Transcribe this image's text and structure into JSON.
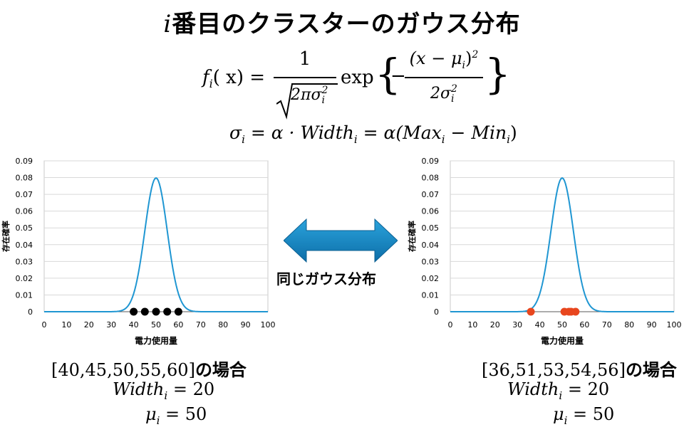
{
  "title": {
    "prefix": "i",
    "text": "番目のクラスターのガウス分布"
  },
  "formula1": {
    "lhs": "f",
    "lhs_sub": "i",
    "lhs_arg": "( x) =",
    "numerator": "1",
    "denominator": "2πσ",
    "denominator_sup": "2",
    "denominator_sub": "i",
    "exp": "exp",
    "brace_open": "{",
    "brace_close": "}",
    "minus": "−",
    "inner_numerator": "(x − μ",
    "inner_numerator_sub": "i",
    "inner_numerator_close": ")",
    "inner_numerator_sup": "2",
    "inner_denominator": "2σ",
    "inner_denominator_sup": "2",
    "inner_denominator_sub": "i"
  },
  "formula2": {
    "sigma": "σ",
    "sub1": "i",
    "eq1": " = α · Width",
    "sub2": "i",
    "eq2": " = α(Max",
    "sub3": "i",
    "minus": " − Min",
    "sub4": "i",
    "close": ")"
  },
  "center_label": "同じガウス分布",
  "charts": [
    {
      "id": "left",
      "points_color": "#000000",
      "points": [
        40,
        45,
        50,
        55,
        60
      ],
      "caption_data": "[40,45,50,55,60]",
      "caption_suffix": "の場合",
      "width_label": "Width",
      "width_sub": "i",
      "width_value": " = 20",
      "mu_label": "μ",
      "mu_sub": "i",
      "mu_value": " = 50"
    },
    {
      "id": "right",
      "points_color": "#e8461e",
      "points": [
        36,
        51,
        53,
        54,
        56
      ],
      "caption_data": "[36,51,53,54,56]",
      "caption_suffix": "の場合",
      "width_label": "Width",
      "width_sub": "i",
      "width_value": " = 20",
      "mu_label": "μ",
      "mu_sub": "i",
      "mu_value": " = 50"
    }
  ],
  "chart_data": [
    {
      "type": "line",
      "xlabel": "電力使用量",
      "ylabel": "存在確率",
      "xlim": [
        0,
        100
      ],
      "ylim": [
        0,
        0.09
      ],
      "xticks": [
        "0",
        "10",
        "20",
        "30",
        "40",
        "50",
        "60",
        "70",
        "80",
        "90",
        "100"
      ],
      "yticks": [
        "0",
        "0.01",
        "0.02",
        "0.03",
        "0.04",
        "0.05",
        "0.06",
        "0.07",
        "0.08",
        "0.09"
      ],
      "curve": {
        "type": "gaussian",
        "mean": 50,
        "sigma": 5
      },
      "scatter": {
        "x": [
          40,
          45,
          50,
          55,
          60
        ],
        "y": [
          0,
          0,
          0,
          0,
          0
        ]
      },
      "line_color": "#1f96d2"
    },
    {
      "type": "line",
      "xlabel": "電力使用量",
      "ylabel": "存在確率",
      "xlim": [
        0,
        100
      ],
      "ylim": [
        0,
        0.09
      ],
      "xticks": [
        "0",
        "10",
        "20",
        "30",
        "40",
        "50",
        "60",
        "70",
        "80",
        "90",
        "100"
      ],
      "yticks": [
        "0",
        "0.01",
        "0.02",
        "0.03",
        "0.04",
        "0.05",
        "0.06",
        "0.07",
        "0.08",
        "0.09"
      ],
      "curve": {
        "type": "gaussian",
        "mean": 50,
        "sigma": 5
      },
      "scatter": {
        "x": [
          36,
          51,
          53,
          54,
          56
        ],
        "y": [
          0,
          0,
          0,
          0,
          0
        ]
      },
      "line_color": "#1f96d2"
    }
  ],
  "colors": {
    "arrow_top": "#2aa3dc",
    "arrow_bottom": "#0d6ea8"
  }
}
